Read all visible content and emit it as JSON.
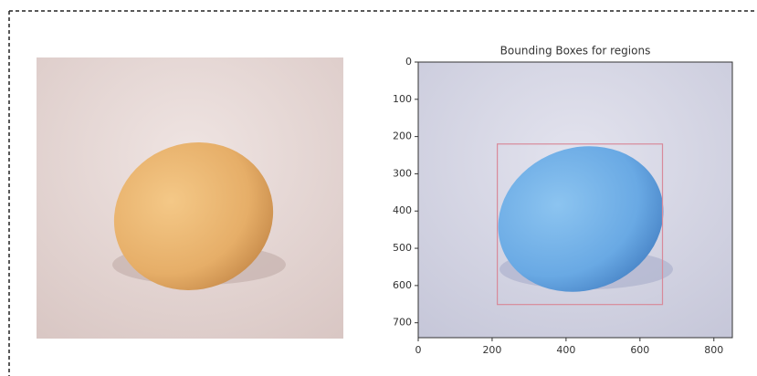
{
  "chart_data": {
    "type": "image",
    "title": "Bounding Boxes for regions",
    "xlim": [
      0,
      850
    ],
    "xticks": [
      0,
      200,
      400,
      600,
      800
    ],
    "ylim": [
      740,
      0
    ],
    "yticks": [
      0,
      100,
      200,
      300,
      400,
      500,
      600,
      700
    ],
    "boxes": [
      {
        "x0": 214,
        "y0": 220,
        "x1": 661,
        "y1": 651
      }
    ],
    "box_color": "#d88a9a"
  }
}
